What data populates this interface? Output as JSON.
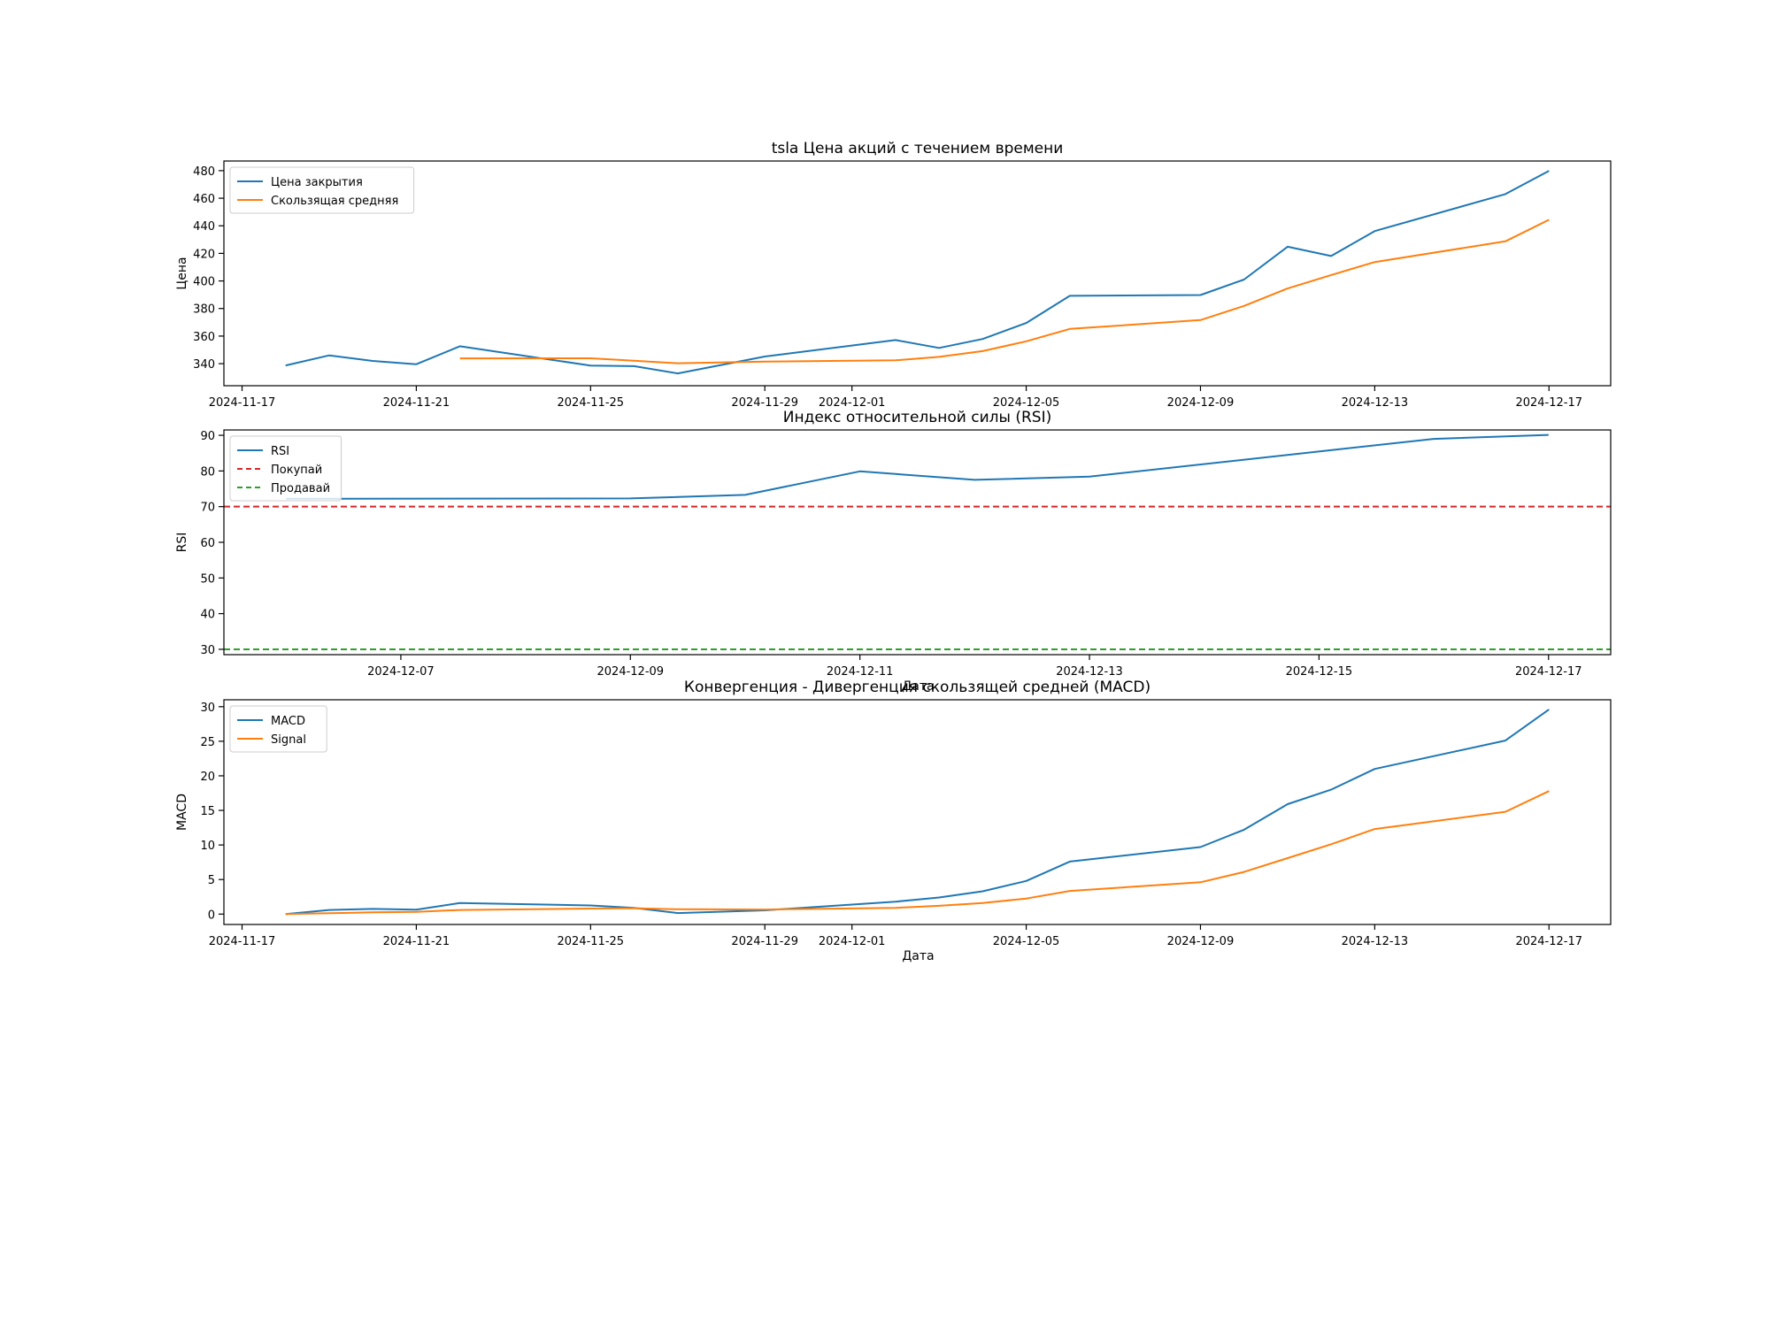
{
  "chart_data": [
    {
      "type": "line",
      "title": "tsla Цена акций с течением времени",
      "xlabel": "",
      "ylabel": "Цена",
      "xlim": [
        "2024-11-16T14:00",
        "2024-12-18T10:00"
      ],
      "ylim": [
        324,
        487
      ],
      "yticks": [
        340,
        360,
        380,
        400,
        420,
        440,
        460,
        480
      ],
      "xticks": [
        "2024-11-17",
        "2024-11-21",
        "2024-11-25",
        "2024-11-29",
        "2024-12-01",
        "2024-12-05",
        "2024-12-09",
        "2024-12-13",
        "2024-12-17"
      ],
      "legend_position": "top-left",
      "series": [
        {
          "name": "Цена закрытия",
          "color": "#1f77b4",
          "x": [
            "2024-11-18",
            "2024-11-19",
            "2024-11-20",
            "2024-11-21",
            "2024-11-22",
            "2024-11-25",
            "2024-11-26",
            "2024-11-27",
            "2024-11-29",
            "2024-12-02",
            "2024-12-03",
            "2024-12-04",
            "2024-12-05",
            "2024-12-06",
            "2024-12-09",
            "2024-12-10",
            "2024-12-11",
            "2024-12-12",
            "2024-12-13",
            "2024-12-16",
            "2024-12-17"
          ],
          "values": [
            338.7,
            346.0,
            342.0,
            339.6,
            352.6,
            338.6,
            338.2,
            332.9,
            345.2,
            357.1,
            351.4,
            357.9,
            369.5,
            389.2,
            389.8,
            400.99,
            424.8,
            418.1,
            436.2,
            463.0,
            479.9
          ]
        },
        {
          "name": "Скользящая средняя",
          "color": "#ff7f0e",
          "x": [
            "2024-11-22",
            "2024-11-25",
            "2024-11-26",
            "2024-11-27",
            "2024-11-29",
            "2024-12-02",
            "2024-12-03",
            "2024-12-04",
            "2024-12-05",
            "2024-12-06",
            "2024-12-09",
            "2024-12-10",
            "2024-12-11",
            "2024-12-12",
            "2024-12-13",
            "2024-12-16",
            "2024-12-17"
          ],
          "values": [
            343.8,
            343.9,
            342.1,
            340.3,
            341.5,
            342.4,
            344.9,
            349.1,
            356.2,
            365.2,
            371.6,
            381.9,
            394.5,
            404.3,
            413.7,
            428.7,
            444.4
          ]
        }
      ]
    },
    {
      "type": "line",
      "title": "Индекс относительной силы (RSI)",
      "xlabel": "Дата",
      "ylabel": "RSI",
      "xlim": [
        "2024-12-05T11:00",
        "2024-12-17T13:00"
      ],
      "ylim": [
        28.5,
        91.5
      ],
      "yticks": [
        30,
        40,
        50,
        60,
        70,
        80,
        90
      ],
      "xticks": [
        "2024-12-07",
        "2024-12-09",
        "2024-12-11",
        "2024-12-13",
        "2024-12-15",
        "2024-12-17"
      ],
      "legend_position": "top-left",
      "series": [
        {
          "name": "RSI",
          "color": "#1f77b4",
          "x": [
            "2024-12-06",
            "2024-12-09",
            "2024-12-10",
            "2024-12-11",
            "2024-12-12",
            "2024-12-13",
            "2024-12-16",
            "2024-12-17"
          ],
          "values": [
            72.2,
            72.3,
            73.3,
            79.9,
            77.5,
            78.4,
            89.0,
            90.1
          ]
        }
      ],
      "reference_lines": [
        {
          "name": "Покупай",
          "value": 70,
          "color": "#d62728",
          "style": "dashed"
        },
        {
          "name": "Продавай",
          "value": 30,
          "color": "#2ca02c",
          "style": "dashed"
        }
      ]
    },
    {
      "type": "line",
      "title": "Конвергенция - Дивергенция скользящей средней (MACD)",
      "xlabel": "Дата",
      "ylabel": "MACD",
      "xlim": [
        "2024-11-16T14:00",
        "2024-12-18T10:00"
      ],
      "ylim": [
        -1.5,
        31
      ],
      "yticks": [
        0,
        5,
        10,
        15,
        20,
        25,
        30
      ],
      "xticks": [
        "2024-11-17",
        "2024-11-21",
        "2024-11-25",
        "2024-11-29",
        "2024-12-01",
        "2024-12-05",
        "2024-12-09",
        "2024-12-13",
        "2024-12-17"
      ],
      "legend_position": "top-left",
      "series": [
        {
          "name": "MACD",
          "color": "#1f77b4",
          "x": [
            "2024-11-18",
            "2024-11-19",
            "2024-11-20",
            "2024-11-21",
            "2024-11-22",
            "2024-11-25",
            "2024-11-26",
            "2024-11-27",
            "2024-11-29",
            "2024-12-02",
            "2024-12-03",
            "2024-12-04",
            "2024-12-05",
            "2024-12-06",
            "2024-12-09",
            "2024-12-10",
            "2024-12-11",
            "2024-12-12",
            "2024-12-13",
            "2024-12-16",
            "2024-12-17"
          ],
          "values": [
            0.0,
            0.6,
            0.75,
            0.65,
            1.6,
            1.25,
            0.9,
            0.15,
            0.55,
            1.8,
            2.4,
            3.3,
            4.8,
            7.6,
            9.7,
            12.2,
            15.9,
            18.0,
            21.0,
            25.1,
            29.6
          ]
        },
        {
          "name": "Signal",
          "color": "#ff7f0e",
          "x": [
            "2024-11-18",
            "2024-11-19",
            "2024-11-20",
            "2024-11-21",
            "2024-11-22",
            "2024-11-25",
            "2024-11-26",
            "2024-11-27",
            "2024-11-29",
            "2024-12-02",
            "2024-12-03",
            "2024-12-04",
            "2024-12-05",
            "2024-12-06",
            "2024-12-09",
            "2024-12-10",
            "2024-12-11",
            "2024-12-12",
            "2024-12-13",
            "2024-12-16",
            "2024-12-17"
          ],
          "values": [
            0.0,
            0.12,
            0.25,
            0.33,
            0.6,
            0.8,
            0.85,
            0.7,
            0.66,
            0.9,
            1.2,
            1.6,
            2.25,
            3.35,
            4.6,
            6.1,
            8.1,
            10.1,
            12.3,
            14.8,
            17.8
          ]
        }
      ]
    }
  ]
}
